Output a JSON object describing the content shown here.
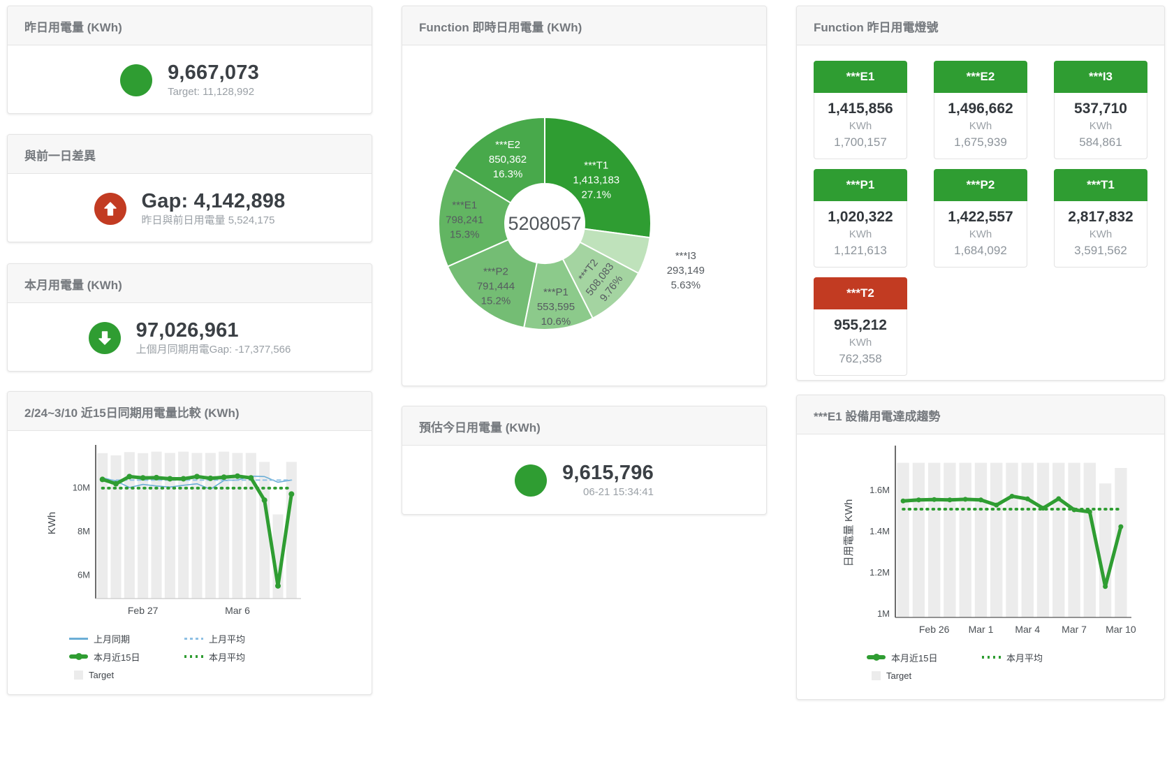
{
  "colors": {
    "green": "#2f9d32",
    "red": "#c23b22",
    "bar_gray": "#ececec",
    "blue_line": "#6baed6",
    "blue_dash": "#8ec0e4",
    "axis_dark": "#3c3c3c",
    "axis_light": "#c9c9c9",
    "tick_text": "#4a4f54"
  },
  "cards": {
    "yesterday": {
      "title": "昨日用電量 (KWh)",
      "value": "9,667,073",
      "subtitle": "Target: 11,128,992",
      "icon": "none"
    },
    "gap": {
      "title": "與前一日差異",
      "value": "Gap: 4,142,898",
      "subtitle": "昨日與前日用電量 5,524,175",
      "icon": "arrow-up"
    },
    "month": {
      "title": "本月用電量 (KWh)",
      "value": "97,026,961",
      "subtitle": "上個月同期用電Gap: -17,377,566",
      "icon": "arrow-down"
    },
    "estimate": {
      "title": "預估今日用電量 (KWh)",
      "value": "9,615,796",
      "subtitle": "06-21 15:34:41",
      "icon": "none"
    }
  },
  "lights": {
    "title": "Function 昨日用電燈號",
    "status_colors": {
      "green": "#2f9d32",
      "red": "#c23b22"
    },
    "tiles": [
      {
        "label": "***E1",
        "value": "1,415,856",
        "unit": "KWh",
        "target": "1,700,157",
        "status": "green"
      },
      {
        "label": "***E2",
        "value": "1,496,662",
        "unit": "KWh",
        "target": "1,675,939",
        "status": "green"
      },
      {
        "label": "***I3",
        "value": "537,710",
        "unit": "KWh",
        "target": "584,861",
        "status": "green"
      },
      {
        "label": "***P1",
        "value": "1,020,322",
        "unit": "KWh",
        "target": "1,121,613",
        "status": "green"
      },
      {
        "label": "***P2",
        "value": "1,422,557",
        "unit": "KWh",
        "target": "1,684,092",
        "status": "green"
      },
      {
        "label": "***T1",
        "value": "2,817,832",
        "unit": "KWh",
        "target": "3,591,562",
        "status": "green"
      },
      {
        "label": "***T2",
        "value": "955,212",
        "unit": "KWh",
        "target": "762,358",
        "status": "red"
      }
    ]
  },
  "chart_data": [
    {
      "id": "donut",
      "type": "pie",
      "title": "Function 即時日用電量 (KWh)",
      "center_total": "5208057",
      "slices": [
        {
          "name": "***T1",
          "value": 1413183,
          "value_label": "1,413,183",
          "pct": 27.1,
          "pct_label": "27.1%",
          "color": "#2f9d32",
          "text": "#ffffff",
          "label_r": 98
        },
        {
          "name": "***I3",
          "value": 293149,
          "value_label": "293,149",
          "pct": 5.63,
          "pct_label": "5.63%",
          "color": "#bfe2bb",
          "text": "#565b60",
          "outside": true,
          "label_r": 212
        },
        {
          "name": "***T2",
          "value": 508083,
          "value_label": "508,083",
          "pct": 9.76,
          "pct_label": "9.76%",
          "color": "#a4d4a1",
          "text": "#565b60",
          "rotate": -52,
          "label_r": 110
        },
        {
          "name": "***P1",
          "value": 553595,
          "value_label": "553,595",
          "pct": 10.6,
          "pct_label": "10.6%",
          "color": "#8cca8b",
          "text": "#565b60",
          "label_r": 118
        },
        {
          "name": "***P2",
          "value": 791444,
          "value_label": "791,444",
          "pct": 15.2,
          "pct_label": "15.2%",
          "color": "#74bd74",
          "text": "#565b60",
          "label_r": 112
        },
        {
          "name": "***E1",
          "value": 798241,
          "value_label": "798,241",
          "pct": 15.3,
          "pct_label": "15.3%",
          "color": "#62b562",
          "text": "#565b60",
          "label_r": 115
        },
        {
          "name": "***E2",
          "value": 850362,
          "value_label": "850,362",
          "pct": 16.3,
          "pct_label": "16.3%",
          "color": "#48a94b",
          "text": "#ffffff",
          "label_r": 108
        }
      ]
    },
    {
      "id": "compare15",
      "type": "bar",
      "title": "2/24~3/10 近15日同期用電量比較 (KWh)",
      "ylabel": "KWh",
      "ymin": 4900000,
      "ymax": 11800000,
      "yticks": [
        {
          "v": 6000000,
          "label": "6M"
        },
        {
          "v": 8000000,
          "label": "8M"
        },
        {
          "v": 10000000,
          "label": "10M"
        }
      ],
      "xticks": [
        {
          "i": 3,
          "label": "Feb 27"
        },
        {
          "i": 10,
          "label": "Mar 6"
        }
      ],
      "bars": {
        "name": "Target",
        "color": "#ececec",
        "values": [
          11550000,
          11450000,
          11600000,
          11550000,
          11620000,
          11560000,
          11620000,
          11560000,
          11560000,
          11620000,
          11560000,
          11560000,
          11150000,
          8750000,
          11150000
        ]
      },
      "series": [
        {
          "name": "上月同期",
          "kind": "line",
          "color": "#6baed6",
          "width": 1.6,
          "values": [
            10420000,
            10280000,
            9980000,
            10120000,
            10050000,
            10000000,
            10080000,
            10150000,
            9900000,
            10300000,
            10320000,
            10500000,
            10480000,
            10220000,
            10320000
          ]
        },
        {
          "name": "上月平均",
          "kind": "dash",
          "color": "#8ec0e4",
          "width": 2,
          "const": 10320000
        },
        {
          "name": "本月近15日",
          "kind": "thick",
          "color": "#2f9d32",
          "width": 5,
          "marker": 4,
          "values": [
            10350000,
            10150000,
            10480000,
            10420000,
            10430000,
            10380000,
            10380000,
            10480000,
            10400000,
            10450000,
            10500000,
            10420000,
            9400000,
            5480000,
            9680000
          ]
        },
        {
          "name": "本月平均",
          "kind": "dots",
          "color": "#2f9d32",
          "width": 4,
          "const": 9950000
        }
      ],
      "legend": [
        {
          "label": "上月同期",
          "sw": "line",
          "color": "#6baed6"
        },
        {
          "label": "上月平均",
          "sw": "dash",
          "color": "#8ec0e4"
        },
        {
          "label": "本月近15日",
          "sw": "thick",
          "color": "#2f9d32"
        },
        {
          "label": "本月平均",
          "sw": "dots",
          "color": "#2f9d32"
        },
        {
          "label": "Target",
          "sw": "box",
          "color": "#ececec"
        }
      ]
    },
    {
      "id": "e1trend",
      "type": "bar",
      "title": "***E1 設備用電達成趨勢",
      "ylabel": "日用電量 KWh",
      "ymin": 980000,
      "ymax": 1800000,
      "yticks": [
        {
          "v": 1000000,
          "label": "1M"
        },
        {
          "v": 1200000,
          "label": "1.2M"
        },
        {
          "v": 1400000,
          "label": "1.4M"
        },
        {
          "v": 1600000,
          "label": "1.6M"
        }
      ],
      "xticks": [
        {
          "i": 2,
          "label": "Feb 26"
        },
        {
          "i": 5,
          "label": "Mar 1"
        },
        {
          "i": 8,
          "label": "Mar 4"
        },
        {
          "i": 11,
          "label": "Mar 7"
        },
        {
          "i": 14,
          "label": "Mar 10"
        }
      ],
      "bars": {
        "name": "Target",
        "color": "#ececec",
        "values": [
          1730000,
          1730000,
          1730000,
          1730000,
          1730000,
          1730000,
          1730000,
          1730000,
          1730000,
          1730000,
          1730000,
          1730000,
          1730000,
          1630000,
          1705000
        ]
      },
      "series": [
        {
          "name": "本月近15日",
          "kind": "thick",
          "color": "#2f9d32",
          "width": 5,
          "marker": 3.5,
          "values": [
            1545000,
            1550000,
            1552000,
            1550000,
            1553000,
            1550000,
            1525000,
            1568000,
            1555000,
            1510000,
            1556000,
            1502000,
            1492000,
            1130000,
            1420000
          ]
        },
        {
          "name": "本月平均",
          "kind": "dots",
          "color": "#2f9d32",
          "width": 4,
          "const": 1505000
        }
      ],
      "legend": [
        {
          "label": "本月近15日",
          "sw": "thick",
          "color": "#2f9d32"
        },
        {
          "label": "本月平均",
          "sw": "dots",
          "color": "#2f9d32"
        },
        {
          "label": "Target",
          "sw": "box",
          "color": "#ececec"
        }
      ]
    }
  ]
}
